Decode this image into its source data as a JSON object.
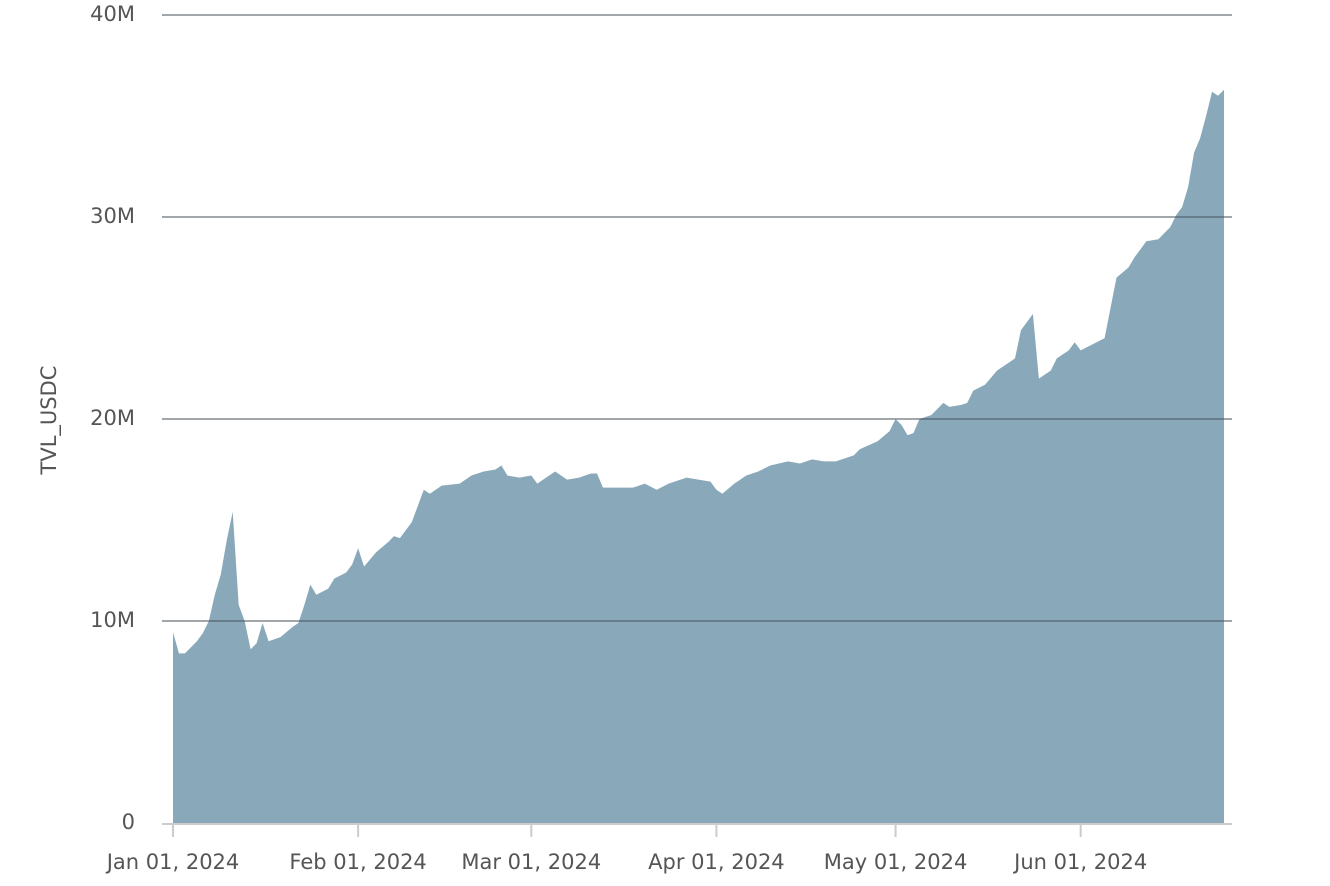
{
  "chart_data": {
    "type": "area",
    "y_label": "TVL_USDC",
    "color": "#89a9ba",
    "grid": true,
    "x": [
      "2024-01-01",
      "2024-01-02",
      "2024-01-03",
      "2024-01-05",
      "2024-01-06",
      "2024-01-07",
      "2024-01-08",
      "2024-01-09",
      "2024-01-10",
      "2024-01-11",
      "2024-01-12",
      "2024-01-13",
      "2024-01-14",
      "2024-01-15",
      "2024-01-16",
      "2024-01-17",
      "2024-01-19",
      "2024-01-21",
      "2024-01-22",
      "2024-01-23",
      "2024-01-24",
      "2024-01-25",
      "2024-01-27",
      "2024-01-28",
      "2024-01-30",
      "2024-01-31",
      "2024-02-01",
      "2024-02-02",
      "2024-02-04",
      "2024-02-06",
      "2024-02-07",
      "2024-02-08",
      "2024-02-10",
      "2024-02-12",
      "2024-02-13",
      "2024-02-15",
      "2024-02-18",
      "2024-02-20",
      "2024-02-22",
      "2024-02-24",
      "2024-02-25",
      "2024-02-26",
      "2024-02-28",
      "2024-03-01",
      "2024-03-02",
      "2024-03-04",
      "2024-03-05",
      "2024-03-07",
      "2024-03-09",
      "2024-03-11",
      "2024-03-12",
      "2024-03-13",
      "2024-03-18",
      "2024-03-20",
      "2024-03-22",
      "2024-03-24",
      "2024-03-27",
      "2024-03-29",
      "2024-03-31",
      "2024-04-01",
      "2024-04-02",
      "2024-04-04",
      "2024-04-06",
      "2024-04-08",
      "2024-04-10",
      "2024-04-13",
      "2024-04-15",
      "2024-04-17",
      "2024-04-19",
      "2024-04-21",
      "2024-04-24",
      "2024-04-25",
      "2024-04-28",
      "2024-04-30",
      "2024-05-01",
      "2024-05-02",
      "2024-05-03",
      "2024-05-04",
      "2024-05-05",
      "2024-05-07",
      "2024-05-09",
      "2024-05-10",
      "2024-05-12",
      "2024-05-13",
      "2024-05-14",
      "2024-05-16",
      "2024-05-18",
      "2024-05-20",
      "2024-05-21",
      "2024-05-22",
      "2024-05-24",
      "2024-05-25",
      "2024-05-27",
      "2024-05-28",
      "2024-05-30",
      "2024-05-31",
      "2024-06-01",
      "2024-06-03",
      "2024-06-05",
      "2024-06-06",
      "2024-06-07",
      "2024-06-09",
      "2024-06-10",
      "2024-06-12",
      "2024-06-14",
      "2024-06-16",
      "2024-06-17",
      "2024-06-18",
      "2024-06-19",
      "2024-06-20",
      "2024-06-21",
      "2024-06-22",
      "2024-06-23",
      "2024-06-24",
      "2024-06-25"
    ],
    "values": [
      9450000,
      8400000,
      8400000,
      9000000,
      9400000,
      10000000,
      11300000,
      12300000,
      14000000,
      15400000,
      10800000,
      10000000,
      8600000,
      8900000,
      9900000,
      9000000,
      9200000,
      9700000,
      9900000,
      10800000,
      11800000,
      11300000,
      11600000,
      12100000,
      12400000,
      12800000,
      13600000,
      12700000,
      13400000,
      13900000,
      14200000,
      14100000,
      14900000,
      16500000,
      16300000,
      16700000,
      16800000,
      17200000,
      17400000,
      17500000,
      17700000,
      17200000,
      17100000,
      17200000,
      16800000,
      17200000,
      17400000,
      17000000,
      17100000,
      17300000,
      17300000,
      16600000,
      16600000,
      16800000,
      16500000,
      16800000,
      17100000,
      17000000,
      16900000,
      16500000,
      16300000,
      16800000,
      17200000,
      17400000,
      17700000,
      17900000,
      17800000,
      18000000,
      17900000,
      17900000,
      18200000,
      18500000,
      18900000,
      19400000,
      20000000,
      19700000,
      19200000,
      19300000,
      20000000,
      20200000,
      20800000,
      20600000,
      20700000,
      20800000,
      21400000,
      21700000,
      22400000,
      22800000,
      23000000,
      24400000,
      25200000,
      22000000,
      22400000,
      23000000,
      23400000,
      23800000,
      23400000,
      23700000,
      24000000,
      25500000,
      27000000,
      27500000,
      28000000,
      28800000,
      28900000,
      29500000,
      30100000,
      30500000,
      31500000,
      33200000,
      33900000,
      35000000,
      36200000,
      36000000,
      36300000
    ],
    "xlim": [
      "2024-01-01",
      "2024-06-25"
    ],
    "xticks": [
      {
        "value": "2024-01-01",
        "label": "Jan 01, 2024"
      },
      {
        "value": "2024-02-01",
        "label": "Feb 01, 2024"
      },
      {
        "value": "2024-03-01",
        "label": "Mar 01, 2024"
      },
      {
        "value": "2024-04-01",
        "label": "Apr 01, 2024"
      },
      {
        "value": "2024-05-01",
        "label": "May 01, 2024"
      },
      {
        "value": "2024-06-01",
        "label": "Jun 01, 2024"
      }
    ],
    "ylim": [
      0,
      40000000
    ],
    "yticks": [
      0,
      {
        "value": 10000000,
        "label": "10M"
      },
      {
        "value": 20000000,
        "label": "20M"
      },
      {
        "value": 30000000,
        "label": "30M"
      },
      {
        "value": 40000000,
        "label": "40M"
      }
    ]
  }
}
